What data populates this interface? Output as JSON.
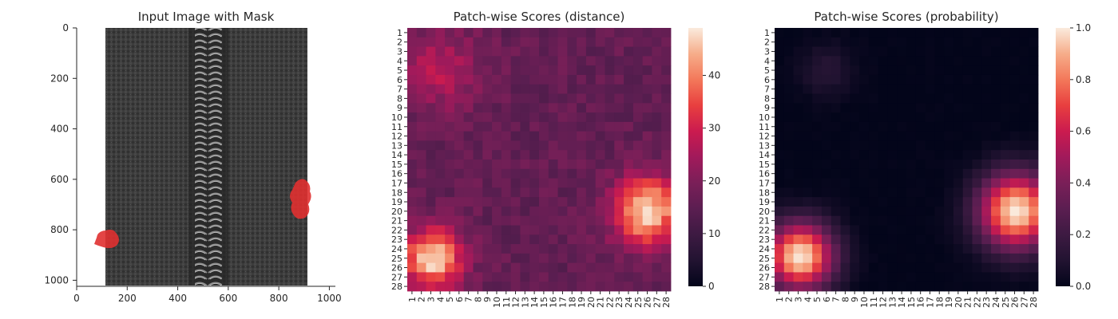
{
  "chart_data": [
    {
      "type": "image",
      "title": "Input Image with Mask",
      "xlim": [
        0,
        1024
      ],
      "ylim": [
        1024,
        0
      ],
      "xticks": [
        "0",
        "200",
        "400",
        "600",
        "800",
        "1000"
      ],
      "yticks": [
        "0",
        "200",
        "400",
        "600",
        "800",
        "1000"
      ],
      "content": "black zipper tape with metal coil in the middle",
      "mask_color": "#e03030",
      "mask_regions": [
        {
          "x_range": [
            80,
            175
          ],
          "y_range": [
            790,
            875
          ]
        },
        {
          "x_range": [
            840,
            910
          ],
          "y_range": [
            590,
            770
          ]
        }
      ]
    },
    {
      "type": "heatmap",
      "title": "Patch-wise Scores (distance)",
      "xlabel": "",
      "ylabel": "",
      "rows": 28,
      "cols": 28,
      "tick_labels": [
        "1",
        "2",
        "3",
        "4",
        "5",
        "6",
        "7",
        "8",
        "9",
        "10",
        "11",
        "12",
        "13",
        "14",
        "15",
        "16",
        "17",
        "18",
        "19",
        "20",
        "21",
        "22",
        "23",
        "24",
        "25",
        "26",
        "27",
        "28"
      ],
      "colorbar": {
        "range": [
          0,
          49
        ],
        "ticks": [
          "0",
          "10",
          "20",
          "30",
          "40"
        ]
      },
      "value_range": [
        0,
        49
      ],
      "background_level": 16,
      "hotspots": [
        {
          "label": "top-left region",
          "center": [
            5,
            4
          ],
          "peak": 27,
          "radius": 3
        },
        {
          "label": "bottom-left region",
          "center": [
            25,
            3.2
          ],
          "peak": 48,
          "radius": 2.2
        },
        {
          "label": "right region",
          "center": [
            20,
            26
          ],
          "peak": 48,
          "radius": 2.5
        }
      ]
    },
    {
      "type": "heatmap",
      "title": "Patch-wise Scores (probability)",
      "xlabel": "",
      "ylabel": "",
      "rows": 28,
      "cols": 28,
      "tick_labels": [
        "1",
        "2",
        "3",
        "4",
        "5",
        "6",
        "7",
        "8",
        "9",
        "10",
        "11",
        "12",
        "13",
        "14",
        "15",
        "16",
        "17",
        "18",
        "19",
        "20",
        "21",
        "22",
        "23",
        "24",
        "25",
        "26",
        "27",
        "28"
      ],
      "colorbar": {
        "range": [
          0,
          1
        ],
        "ticks": [
          "0.0",
          "0.2",
          "0.4",
          "0.6",
          "0.8",
          "1.0"
        ]
      },
      "value_range": [
        0,
        1
      ],
      "background_level": 0,
      "hotspots": [
        {
          "label": "bottom-left region",
          "center": [
            24.8,
            3.2
          ],
          "peak": 1.0,
          "radius": 2.5
        },
        {
          "label": "right region",
          "center": [
            20,
            26.2
          ],
          "peak": 1.0,
          "radius": 2.8
        },
        {
          "label": "faint top region",
          "center": [
            5,
            6
          ],
          "peak": 0.12,
          "radius": 2
        }
      ]
    }
  ]
}
